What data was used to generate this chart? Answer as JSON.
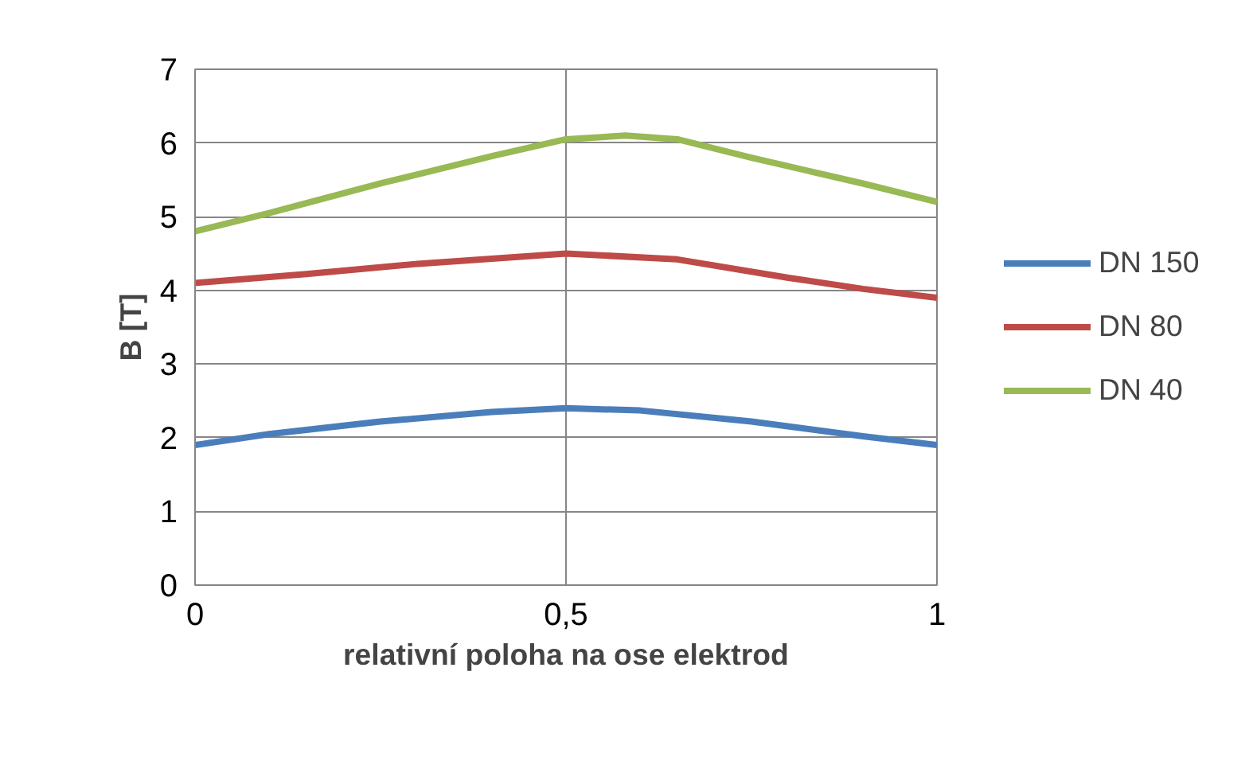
{
  "chart_data": {
    "type": "line",
    "xlabel": "relativní poloha na ose elektrod",
    "ylabel": "B [T]",
    "series": [
      {
        "name": "DN 150",
        "color": "#4a7ebb",
        "x": [
          0,
          0.1,
          0.25,
          0.4,
          0.5,
          0.6,
          0.75,
          0.9,
          1
        ],
        "values": [
          1.9,
          2.05,
          2.22,
          2.35,
          2.4,
          2.37,
          2.22,
          2.02,
          1.9
        ]
      },
      {
        "name": "DN 80",
        "color": "#be4b48",
        "x": [
          0,
          0.15,
          0.3,
          0.5,
          0.65,
          0.8,
          0.9,
          1
        ],
        "values": [
          4.1,
          4.22,
          4.36,
          4.5,
          4.42,
          4.17,
          4.02,
          3.9
        ]
      },
      {
        "name": "DN 40",
        "color": "#98b954",
        "x": [
          0,
          0.1,
          0.25,
          0.4,
          0.5,
          0.58,
          0.65,
          0.75,
          0.9,
          1
        ],
        "values": [
          4.8,
          5.05,
          5.45,
          5.82,
          6.05,
          6.1,
          6.05,
          5.8,
          5.45,
          5.2
        ]
      }
    ],
    "xlim": [
      0,
      1
    ],
    "xticks": [
      0,
      {
        "value": 0.5,
        "label": "0,5"
      },
      1
    ],
    "ylim": [
      0,
      7
    ],
    "yticks": [
      0,
      1,
      2,
      3,
      4,
      5,
      6,
      7
    ],
    "grid": true,
    "legend": "right",
    "marker": "none",
    "line_style": "solid"
  }
}
